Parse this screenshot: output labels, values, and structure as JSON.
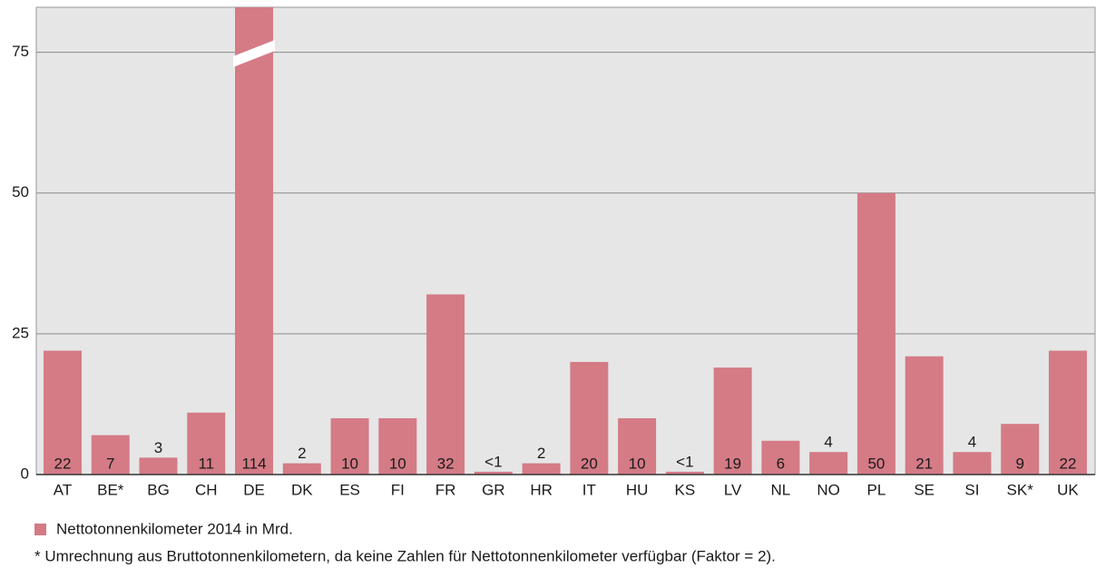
{
  "chart_data": {
    "type": "bar",
    "categories": [
      "AT",
      "BE*",
      "BG",
      "CH",
      "DE",
      "DK",
      "ES",
      "FI",
      "FR",
      "GR",
      "HR",
      "IT",
      "HU",
      "KS",
      "LV",
      "NL",
      "NO",
      "PL",
      "SE",
      "SI",
      "SK*",
      "UK"
    ],
    "series": [
      {
        "name": "Nettotonnenkilometer 2014 in Mrd.",
        "color": "#d47b86",
        "values": [
          22,
          7,
          3,
          11,
          114,
          2,
          10,
          10,
          32,
          0.5,
          2,
          20,
          10,
          0.5,
          19,
          6,
          4,
          50,
          21,
          4,
          9,
          22
        ],
        "value_labels": [
          "22",
          "7",
          "3",
          "11",
          "114",
          "2",
          "10",
          "10",
          "32",
          "<1",
          "2",
          "20",
          "10",
          "<1",
          "19",
          "6",
          "4",
          "50",
          "21",
          "4",
          "9",
          "22"
        ]
      }
    ],
    "ylim": [
      0,
      83
    ],
    "yticks": [
      0,
      25,
      50,
      75
    ],
    "grid": true,
    "footnote": "* Umrechnung aus Bruttotonnenkilometern, da keine Zahlen für Nettotonnenkilometer verfügbar (Faktor = 2)."
  }
}
